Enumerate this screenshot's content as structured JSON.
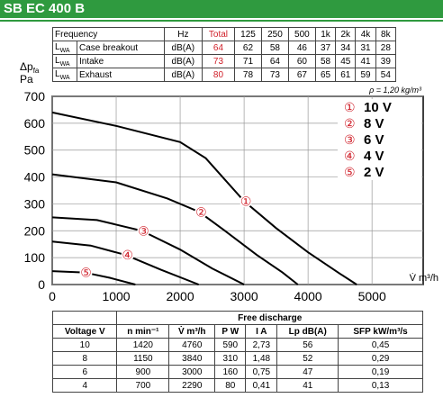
{
  "header": {
    "title": "SB EC 400 B"
  },
  "sound_table": {
    "columns": [
      "Frequency",
      "Hz",
      "Total",
      "125",
      "250",
      "500",
      "1k",
      "2k",
      "4k",
      "8k"
    ],
    "rows": [
      {
        "symbol": "L",
        "sub": "WA",
        "name": "Case breakout",
        "unit": "dB(A)",
        "total": 64,
        "values": [
          62,
          58,
          46,
          37,
          34,
          31,
          28
        ]
      },
      {
        "symbol": "L",
        "sub": "WA",
        "name": "Intake",
        "unit": "dB(A)",
        "total": 73,
        "values": [
          71,
          64,
          60,
          58,
          45,
          41,
          39
        ]
      },
      {
        "symbol": "L",
        "sub": "WA",
        "name": "Exhaust",
        "unit": "dB(A)",
        "total": 80,
        "values": [
          78,
          73,
          67,
          65,
          61,
          59,
          54
        ]
      }
    ]
  },
  "chart_data": {
    "type": "line",
    "y_label": {
      "symbol": "Δp",
      "sub": "fa",
      "unit": "Pa"
    },
    "x_label": "V̇ m³/h",
    "annotation": "ρ = 1,20 kg/m³",
    "xlim": [
      0,
      5800
    ],
    "xticks": [
      0,
      1000,
      2000,
      3000,
      4000,
      5000
    ],
    "ylim": [
      0,
      700
    ],
    "yticks": [
      0,
      100,
      200,
      300,
      400,
      500,
      600,
      700
    ],
    "grid": true,
    "series": [
      {
        "name": "10 V",
        "marker": "①",
        "color": "#000000",
        "x": [
          0,
          1000,
          2000,
          2400,
          3000,
          3500,
          4000,
          4500,
          4760
        ],
        "values": [
          640,
          590,
          530,
          470,
          310,
          210,
          120,
          40,
          0
        ]
      },
      {
        "name": "8 V",
        "marker": "②",
        "color": "#000000",
        "x": [
          0,
          1000,
          1800,
          2300,
          2700,
          3200,
          3600,
          3840
        ],
        "values": [
          410,
          380,
          320,
          270,
          200,
          110,
          45,
          0
        ]
      },
      {
        "name": "6 V",
        "marker": "③",
        "color": "#000000",
        "x": [
          0,
          700,
          1400,
          2000,
          2500,
          3000
        ],
        "values": [
          250,
          240,
          200,
          130,
          60,
          0
        ]
      },
      {
        "name": "4 V",
        "marker": "④",
        "color": "#000000",
        "x": [
          0,
          600,
          1150,
          1700,
          2290
        ],
        "values": [
          160,
          145,
          110,
          55,
          0
        ]
      },
      {
        "name": "2 V",
        "marker": "⑤",
        "color": "#000000",
        "x": [
          0,
          500,
          900,
          1300
        ],
        "values": [
          50,
          45,
          25,
          0
        ]
      }
    ]
  },
  "performance_table": {
    "group": "Free discharge",
    "columns": [
      "Voltage V",
      "n min⁻¹",
      "V̇ m³/h",
      "P W",
      "I A",
      "Lp dB(A)",
      "SFP kW/m³/s"
    ],
    "rows": [
      [
        "10",
        "1420",
        "4760",
        "590",
        "2,73",
        "56",
        "0,45"
      ],
      [
        "8",
        "1150",
        "3840",
        "310",
        "1,48",
        "52",
        "0,29"
      ],
      [
        "6",
        "900",
        "3000",
        "160",
        "0,75",
        "47",
        "0,19"
      ],
      [
        "4",
        "700",
        "2290",
        "80",
        "0,41",
        "41",
        "0,13"
      ]
    ]
  }
}
